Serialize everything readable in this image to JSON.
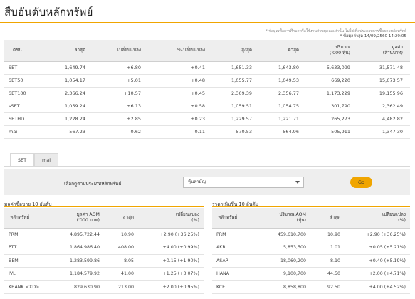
{
  "page": {
    "title": "สืบอันดับหลักทรัพย์",
    "note_disclaimer": "* ข้อมูลเพื่อการศึกษาหรือใช้งานส่วนบุคคลเท่านั้น ไม่ใช่เพื่อประกอบการซื้อขายหลักทรัพย์",
    "note_timestamp": "* ข้อมูลล่าสุด 14/09/2560 14:29:05"
  },
  "index_table": {
    "headers": [
      "ดัชนี",
      "ล่าสุด",
      "เปลี่ยนแปลง",
      "%เปลี่ยนแปลง",
      "สูงสุด",
      "ต่ำสุด",
      "ปริมาณ\n('000 หุ้น)",
      "มูลค่า\n(ล้านบาท)"
    ],
    "rows": [
      {
        "name": "SET",
        "last": "1,649.74",
        "chg": "+6.80",
        "pct": "+0.41",
        "high": "1,651.33",
        "low": "1,643.80",
        "vol": "5,633,099",
        "val": "31,571.48",
        "dir": "pos",
        "link": false
      },
      {
        "name": "SET50",
        "last": "1,054.17",
        "chg": "+5.01",
        "pct": "+0.48",
        "high": "1,055.77",
        "low": "1,049.53",
        "vol": "669,220",
        "val": "15,673.57",
        "dir": "pos",
        "link": true
      },
      {
        "name": "SET100",
        "last": "2,366.24",
        "chg": "+10.57",
        "pct": "+0.45",
        "high": "2,369.39",
        "low": "2,356.77",
        "vol": "1,173,229",
        "val": "19,155.96",
        "dir": "pos",
        "link": true
      },
      {
        "name": "sSET",
        "last": "1,059.24",
        "chg": "+6.13",
        "pct": "+0.58",
        "high": "1,059.51",
        "low": "1,054.75",
        "vol": "301,790",
        "val": "2,362.49",
        "dir": "pos",
        "link": true
      },
      {
        "name": "SETHD",
        "last": "1,228.24",
        "chg": "+2.85",
        "pct": "+0.23",
        "high": "1,229.57",
        "low": "1,221.71",
        "vol": "265,273",
        "val": "4,482.82",
        "dir": "pos",
        "link": true
      },
      {
        "name": "mai",
        "last": "567.23",
        "chg": "-0.62",
        "pct": "-0.11",
        "high": "570.53",
        "low": "564.96",
        "vol": "505,911",
        "val": "1,347.30",
        "dir": "neg",
        "link": false
      }
    ]
  },
  "tabs": [
    "SET",
    "mai"
  ],
  "filter": {
    "label": "เลือกดูตามประเภทหลักทรัพย์",
    "selected": "หุ้นสามัญ",
    "go_label": "Go"
  },
  "top_value": {
    "title": "มูลค่าซื้อขาย 10 อันดับ",
    "headers": [
      "หลักทรัพย์",
      "มูลค่า AOM\n('000 บาท)",
      "ล่าสุด",
      "เปลี่ยนแปลง\n(%)"
    ],
    "rows": [
      {
        "sym": "PRM",
        "v1": "4,895,722.44",
        "last": "10.90",
        "chg": "+2.90 (+36.25%)"
      },
      {
        "sym": "PTT",
        "v1": "1,864,986.40",
        "last": "408.00",
        "chg": "+4.00 (+0.99%)"
      },
      {
        "sym": "BEM",
        "v1": "1,283,599.86",
        "last": "8.05",
        "chg": "+0.15 (+1.90%)"
      },
      {
        "sym": "IVL",
        "v1": "1,184,579.92",
        "last": "41.00",
        "chg": "+1.25 (+3.07%)"
      },
      {
        "sym": "KBANK <XD>",
        "v1": "829,630.90",
        "last": "213.00",
        "chg": "+2.00 (+0.95%)"
      }
    ]
  },
  "top_volume": {
    "title": "ราคาเพิ่มขึ้น 10 อันดับ",
    "headers": [
      "หลักทรัพย์",
      "ปริมาณ AOM\n(หุ้น)",
      "ล่าสุด",
      "เปลี่ยนแปลง\n(%)"
    ],
    "rows": [
      {
        "sym": "PRM",
        "v1": "459,610,700",
        "last": "10.90",
        "chg": "+2.90 (+36.25%)"
      },
      {
        "sym": "AKR",
        "v1": "5,853,500",
        "last": "1.01",
        "chg": "+0.05 (+5.21%)"
      },
      {
        "sym": "ASAP",
        "v1": "18,060,200",
        "last": "8.10",
        "chg": "+0.40 (+5.19%)"
      },
      {
        "sym": "HANA",
        "v1": "9,100,700",
        "last": "44.50",
        "chg": "+2.00 (+4.71%)"
      },
      {
        "sym": "KCE",
        "v1": "8,858,800",
        "last": "92.50",
        "chg": "+4.00 (+4.52%)"
      }
    ]
  },
  "colors": {
    "accent": "#f0a500",
    "link": "#2f6fc0",
    "up": "#2a9d2a",
    "down": "#d62b2b"
  }
}
